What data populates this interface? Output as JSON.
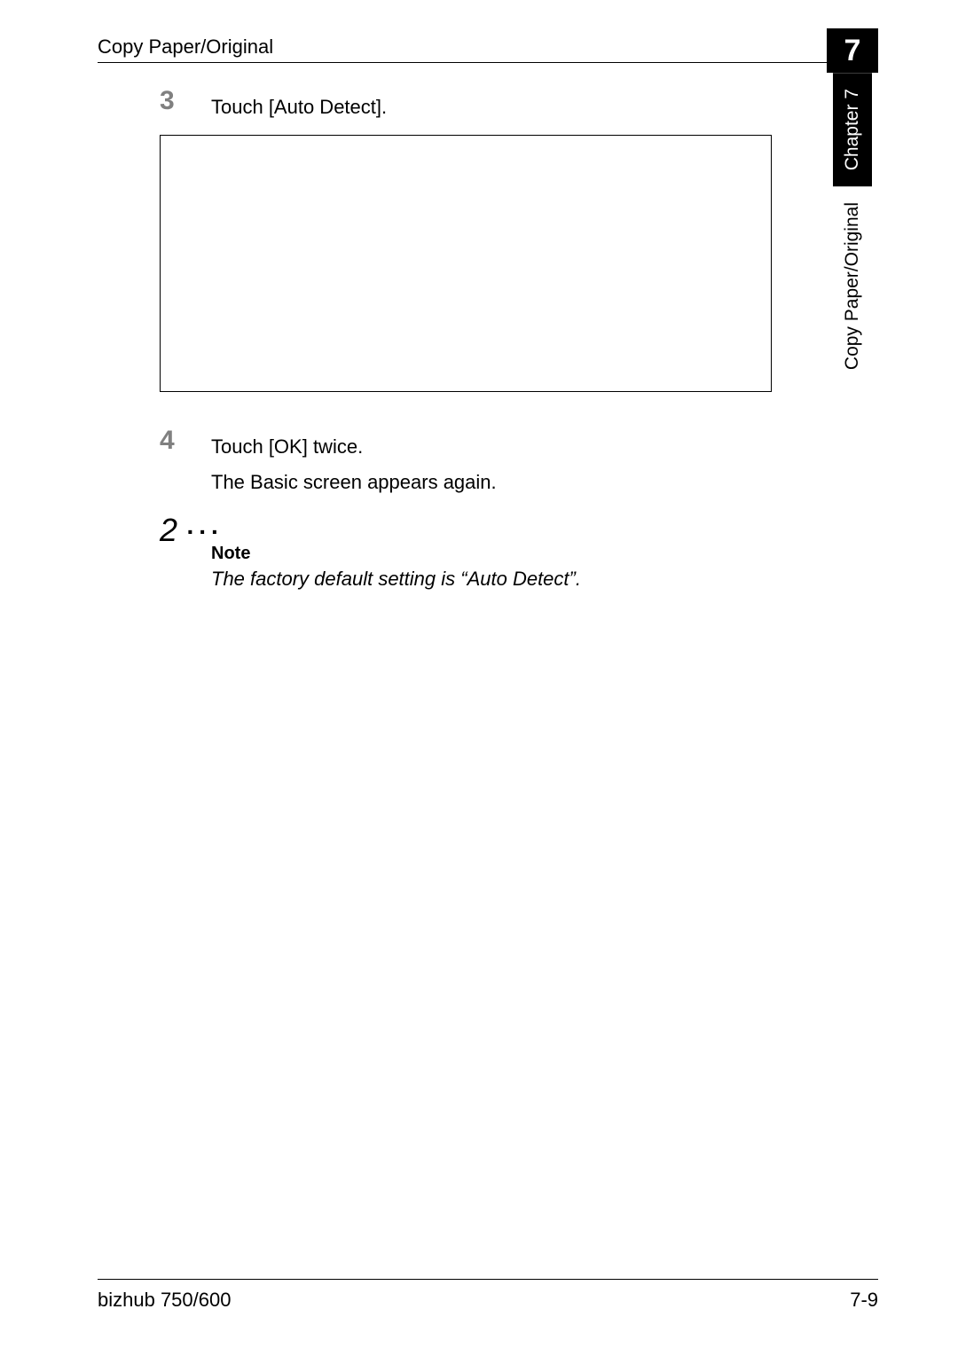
{
  "header": {
    "section_title": "Copy Paper/Original",
    "chapter_number": "7"
  },
  "side_tab": {
    "chapter_label": "Chapter 7",
    "section_label": "Copy Paper/Original"
  },
  "content": {
    "step3": {
      "number": "3",
      "text": "Touch [Auto Detect]."
    },
    "step4": {
      "number": "4",
      "text": "Touch [OK] twice.",
      "sub_text": "The Basic screen appears again."
    },
    "note": {
      "symbol": "2",
      "dots": "...",
      "heading": "Note",
      "text": "The factory default setting is “Auto Detect”."
    }
  },
  "footer": {
    "model": "bizhub 750/600",
    "page": "7-9"
  }
}
